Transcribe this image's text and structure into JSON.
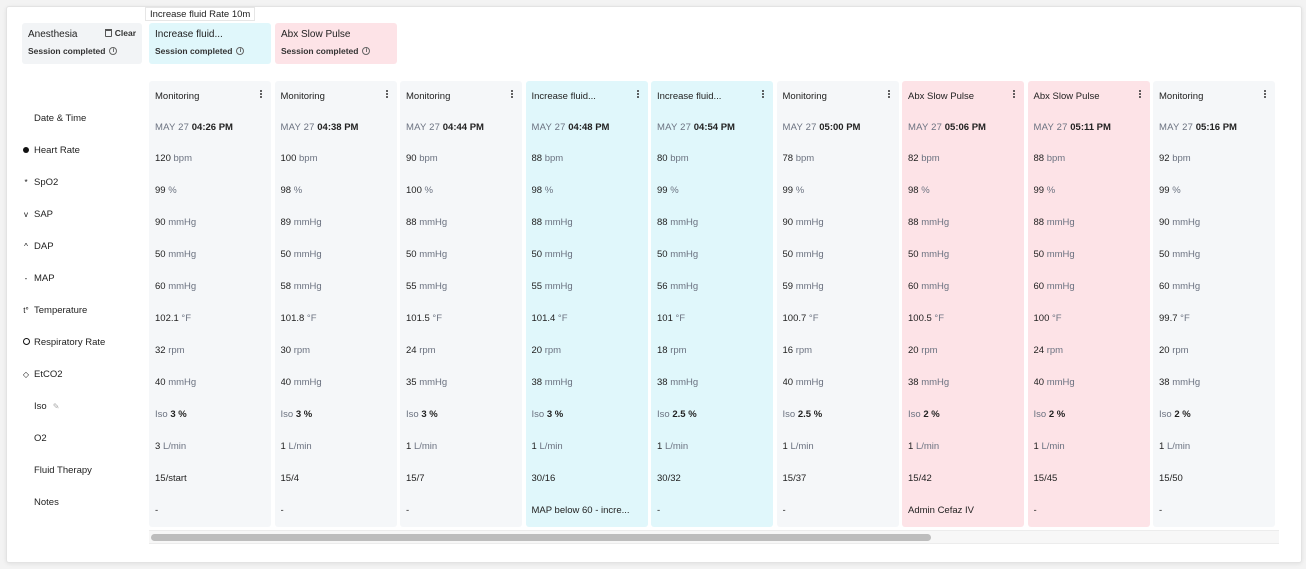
{
  "tooltip": "Increase fluid Rate 10m",
  "sessions": [
    {
      "name": "Anesthesia",
      "status": "Session completed",
      "clear_label": "Clear"
    },
    {
      "name": "Increase fluid...",
      "status": "Session completed"
    },
    {
      "name": "Abx Slow Pulse",
      "status": "Session completed"
    }
  ],
  "row_labels": {
    "datetime": "Date & Time",
    "heart_rate": "Heart Rate",
    "spo2": "SpO2",
    "sap": "SAP",
    "dap": "DAP",
    "map": "MAP",
    "temperature": "Temperature",
    "respiratory_rate": "Respiratory Rate",
    "etco2": "EtCO2",
    "iso": "Iso",
    "o2": "O2",
    "fluid_therapy": "Fluid Therapy",
    "notes": "Notes"
  },
  "row_icons": {
    "spo2": "*",
    "sap": "v",
    "dap": "^",
    "map": "-",
    "temperature": "t°",
    "etco2": "◇"
  },
  "units": {
    "heart_rate": "bpm",
    "spo2": "%",
    "pressure": "mmHg",
    "temperature": "°F",
    "respiratory_rate": "rpm",
    "iso_prefix": "Iso",
    "iso_suffix": "%",
    "o2": "L/min"
  },
  "columns": [
    {
      "title": "Monitoring",
      "kind": "normal",
      "date": "MAY 27",
      "time": "04:26 PM",
      "hr": "120",
      "spo2": "99",
      "sap": "90",
      "dap": "50",
      "map": "60",
      "temp": "102.1",
      "rr": "32",
      "etco2": "40",
      "iso": "3",
      "o2": "3",
      "fluid": "15/start",
      "notes": "-"
    },
    {
      "title": "Monitoring",
      "kind": "normal",
      "date": "MAY 27",
      "time": "04:38 PM",
      "hr": "100",
      "spo2": "98",
      "sap": "89",
      "dap": "50",
      "map": "58",
      "temp": "101.8",
      "rr": "30",
      "etco2": "40",
      "iso": "3",
      "o2": "1",
      "fluid": "15/4",
      "notes": "-"
    },
    {
      "title": "Monitoring",
      "kind": "normal",
      "date": "MAY 27",
      "time": "04:44 PM",
      "hr": "90",
      "spo2": "100",
      "sap": "88",
      "dap": "50",
      "map": "55",
      "temp": "101.5",
      "rr": "24",
      "etco2": "35",
      "iso": "3",
      "o2": "1",
      "fluid": "15/7",
      "notes": "-"
    },
    {
      "title": "Increase fluid...",
      "kind": "fluid",
      "date": "MAY 27",
      "time": "04:48 PM",
      "hr": "88",
      "spo2": "98",
      "sap": "88",
      "dap": "50",
      "map": "55",
      "temp": "101.4",
      "rr": "20",
      "etco2": "38",
      "iso": "3",
      "o2": "1",
      "fluid": "30/16",
      "notes": "MAP below 60 - incre..."
    },
    {
      "title": "Increase fluid...",
      "kind": "fluid",
      "date": "MAY 27",
      "time": "04:54 PM",
      "hr": "80",
      "spo2": "99",
      "sap": "88",
      "dap": "50",
      "map": "56",
      "temp": "101",
      "rr": "18",
      "etco2": "38",
      "iso": "2.5",
      "o2": "1",
      "fluid": "30/32",
      "notes": "-"
    },
    {
      "title": "Monitoring",
      "kind": "normal",
      "date": "MAY 27",
      "time": "05:00 PM",
      "hr": "78",
      "spo2": "99",
      "sap": "90",
      "dap": "50",
      "map": "59",
      "temp": "100.7",
      "rr": "16",
      "etco2": "40",
      "iso": "2.5",
      "o2": "1",
      "fluid": "15/37",
      "notes": "-"
    },
    {
      "title": "Abx Slow Pulse",
      "kind": "abx",
      "date": "MAY 27",
      "time": "05:06 PM",
      "hr": "82",
      "spo2": "98",
      "sap": "88",
      "dap": "50",
      "map": "60",
      "temp": "100.5",
      "rr": "20",
      "etco2": "38",
      "iso": "2",
      "o2": "1",
      "fluid": "15/42",
      "notes": "Admin Cefaz IV"
    },
    {
      "title": "Abx Slow Pulse",
      "kind": "abx",
      "date": "MAY 27",
      "time": "05:11 PM",
      "hr": "88",
      "spo2": "99",
      "sap": "88",
      "dap": "50",
      "map": "60",
      "temp": "100",
      "rr": "24",
      "etco2": "40",
      "iso": "2",
      "o2": "1",
      "fluid": "15/45",
      "notes": "-"
    },
    {
      "title": "Monitoring",
      "kind": "normal",
      "date": "MAY 27",
      "time": "05:16 PM",
      "hr": "92",
      "spo2": "99",
      "sap": "90",
      "dap": "50",
      "map": "60",
      "temp": "99.7",
      "rr": "20",
      "etco2": "38",
      "iso": "2",
      "o2": "1",
      "fluid": "15/50",
      "notes": "-"
    }
  ]
}
